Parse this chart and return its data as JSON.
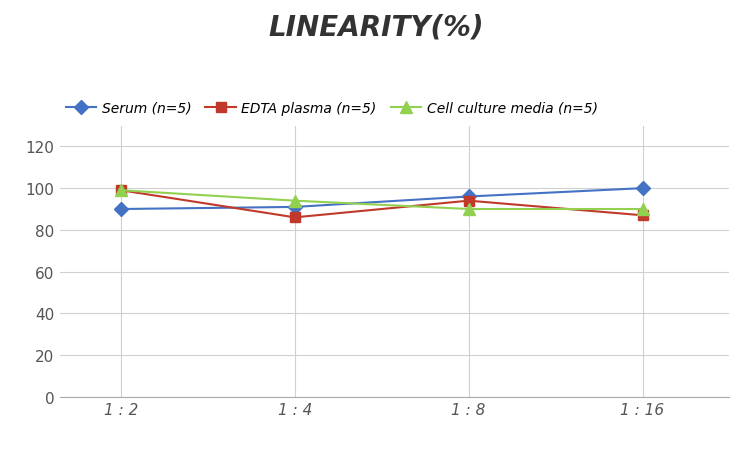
{
  "title": "LINEARITY(%)",
  "x_labels": [
    "1 : 2",
    "1 : 4",
    "1 : 8",
    "1 : 16"
  ],
  "x_positions": [
    0,
    1,
    2,
    3
  ],
  "series": [
    {
      "label": "Serum (n=5)",
      "values": [
        90,
        91,
        96,
        100
      ],
      "color": "#4472C4",
      "marker": "D",
      "marker_size": 7,
      "linewidth": 1.5
    },
    {
      "label": "EDTA plasma (n=5)",
      "values": [
        99,
        86,
        94,
        87
      ],
      "color": "#C0392B",
      "marker": "s",
      "marker_size": 7,
      "linewidth": 1.5
    },
    {
      "label": "Cell culture media (n=5)",
      "values": [
        99,
        94,
        90,
        90
      ],
      "color": "#92D050",
      "marker": "^",
      "marker_size": 8,
      "linewidth": 1.5
    }
  ],
  "ylim": [
    0,
    130
  ],
  "yticks": [
    0,
    20,
    40,
    60,
    80,
    100,
    120
  ],
  "background_color": "#ffffff",
  "title_fontsize": 20,
  "title_fontstyle": "italic",
  "title_fontweight": "bold",
  "legend_fontsize": 10,
  "tick_fontsize": 11,
  "grid_color": "#d0d0d0",
  "grid_linewidth": 0.8,
  "xlim": [
    -0.35,
    3.5
  ]
}
